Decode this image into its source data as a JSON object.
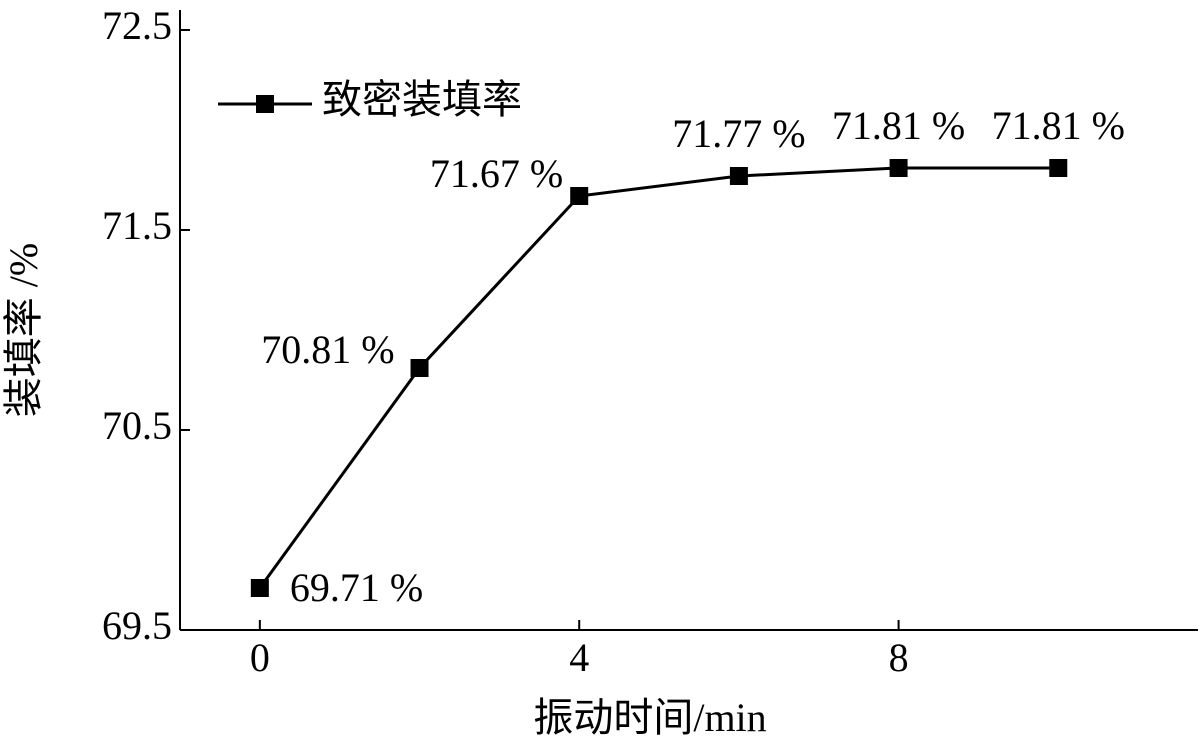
{
  "chart_data": {
    "type": "line",
    "x_label": "振动时间/min",
    "y_label": "装填率 /%",
    "x": [
      0,
      2,
      4,
      6,
      8,
      10
    ],
    "series": [
      {
        "name": "致密装填率",
        "color": "#000000",
        "values": [
          69.71,
          70.81,
          71.67,
          71.77,
          71.81,
          71.81
        ],
        "value_labels": [
          "69.71 %",
          "70.81 %",
          "71.67 %",
          "71.77 %",
          "71.81 %",
          "71.81 %"
        ]
      }
    ],
    "xlim": [
      -1,
      11.75
    ],
    "ylim": [
      69.5,
      72.5
    ],
    "xticks": [
      0,
      4,
      8
    ],
    "yticks": [
      69.5,
      70.5,
      71.5,
      72.5
    ],
    "grid": false,
    "legend": "upper left"
  }
}
